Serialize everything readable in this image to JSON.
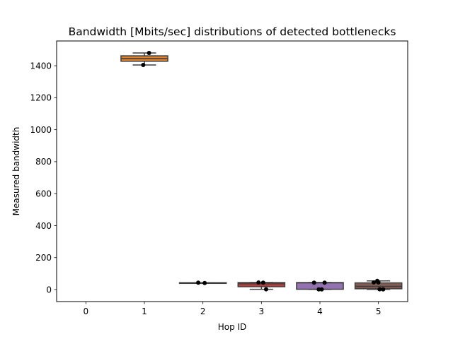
{
  "chart_data": {
    "type": "box",
    "title": "Bandwidth [Mbits/sec] distributions of detected bottlenecks",
    "xlabel": "Hop ID",
    "ylabel": "Measured bandwidth",
    "ylim": [
      -75,
      1555
    ],
    "yticks": [
      0,
      200,
      400,
      600,
      800,
      1000,
      1200,
      1400
    ],
    "categories": [
      "0",
      "1",
      "2",
      "3",
      "4",
      "5"
    ],
    "grid": false,
    "boxes": [
      {
        "hop": "0",
        "color": null,
        "points": []
      },
      {
        "hop": "1",
        "color": "#e1812c",
        "q1": 1428,
        "median": 1445,
        "q3": 1462,
        "whisker_low": 1405,
        "whisker_high": 1480,
        "points": [
          [
            1.08,
            1480
          ],
          [
            0.98,
            1405
          ]
        ]
      },
      {
        "hop": "2",
        "color": "#3a923a",
        "q1": 41,
        "median": 42,
        "q3": 43,
        "whisker_low": 41,
        "whisker_high": 43,
        "points": [
          [
            1.92,
            43
          ],
          [
            2.03,
            41
          ]
        ]
      },
      {
        "hop": "3",
        "color": "#c03d3e",
        "q1": 18,
        "median": 36,
        "q3": 44,
        "whisker_low": 2,
        "whisker_high": 44,
        "points": [
          [
            2.95,
            44
          ],
          [
            3.03,
            43
          ],
          [
            3.08,
            2
          ]
        ]
      },
      {
        "hop": "4",
        "color": "#9372b2",
        "q1": 2,
        "median": 42,
        "q3": 44,
        "whisker_low": 1,
        "whisker_high": 44,
        "points": [
          [
            3.9,
            43
          ],
          [
            4.08,
            43
          ],
          [
            3.98,
            1
          ],
          [
            4.03,
            1
          ]
        ]
      },
      {
        "hop": "5",
        "color": "#845b53",
        "q1": 5,
        "median": 20,
        "q3": 42,
        "whisker_low": 1,
        "whisker_high": 54,
        "points": [
          [
            4.92,
            45
          ],
          [
            4.98,
            54
          ],
          [
            5.0,
            45
          ],
          [
            5.02,
            2
          ],
          [
            5.08,
            1
          ]
        ]
      }
    ]
  }
}
